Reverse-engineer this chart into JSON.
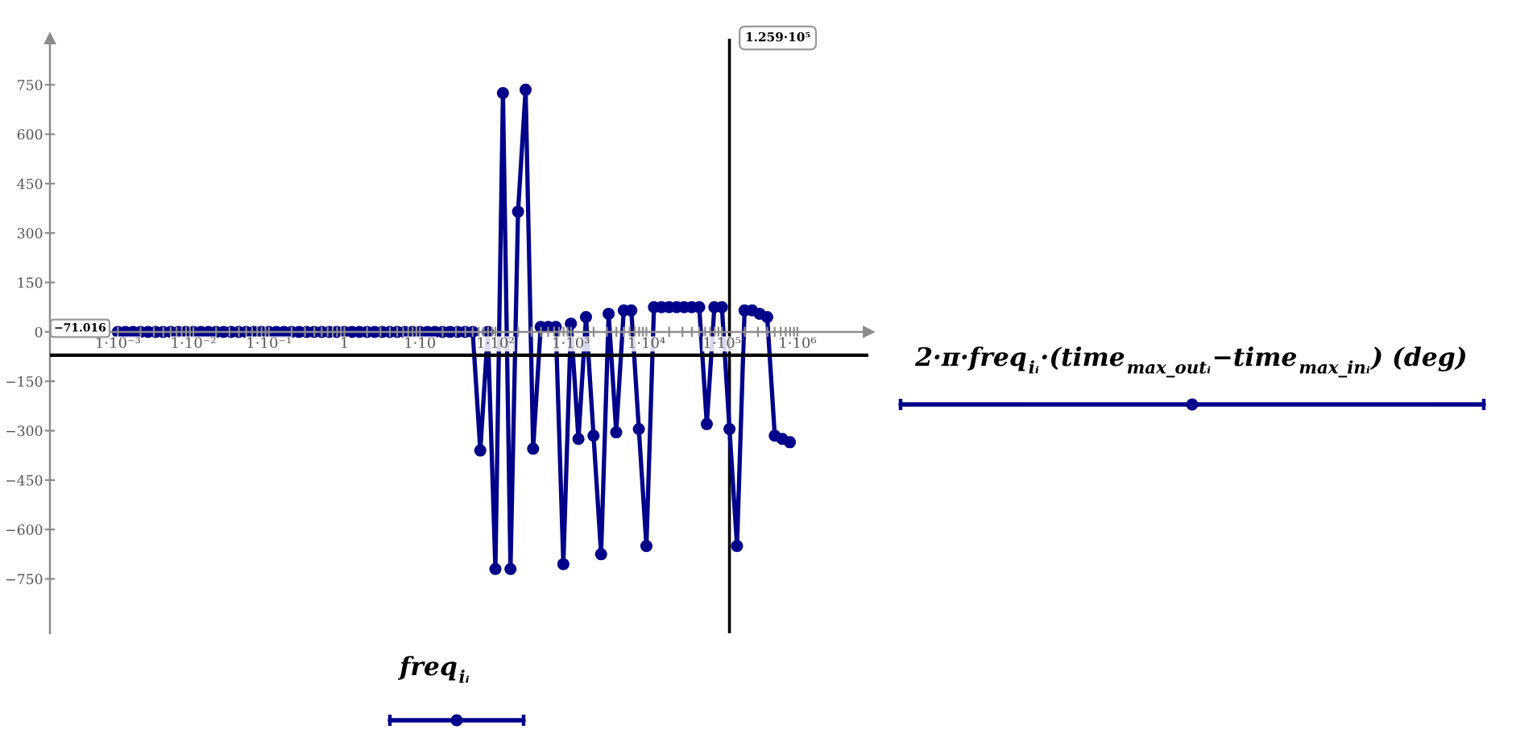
{
  "chart_data": {
    "type": "line",
    "xlabel": "freq$_{iᵢ}$",
    "ylabel": "2·π·freq$_{iᵢ}$·(time$_{max_outᵢ}$−time$_{max_inᵢ}$) (deg)",
    "log": "x",
    "marker": "circle",
    "line_style": "solid",
    "x": [
      0.001,
      0.001259,
      0.001585,
      0.001995,
      0.002512,
      0.003162,
      0.003981,
      0.005012,
      0.00631,
      0.007943,
      0.01,
      0.01259,
      0.01585,
      0.01995,
      0.02512,
      0.03162,
      0.03981,
      0.05012,
      0.0631,
      0.07943,
      0.1,
      0.1259,
      0.1585,
      0.1995,
      0.2512,
      0.3162,
      0.3981,
      0.5012,
      0.631,
      0.7943,
      1,
      1.259,
      1.585,
      1.995,
      2.512,
      3.162,
      3.981,
      5.012,
      6.31,
      7.943,
      10,
      12.59,
      15.85,
      19.95,
      25.12,
      31.62,
      39.81,
      50.12,
      63.1,
      79.43,
      100,
      125.9,
      158.5,
      199.5,
      251.2,
      316.2,
      398.1,
      501.2,
      631,
      794.3,
      1000,
      1259,
      1585,
      1995,
      2512,
      3162,
      3981,
      5012,
      6310,
      7943,
      10000,
      12590,
      15850,
      19950,
      25120,
      31620,
      39810,
      50120,
      63100,
      79430,
      100000,
      125900,
      158500,
      199500,
      251200,
      316200,
      398100,
      501200,
      631000,
      794300
    ],
    "series": [
      {
        "color": "#00008b",
        "values": [
          0,
          0,
          0,
          0,
          0,
          0,
          0,
          0,
          0,
          0,
          0,
          0,
          0,
          0,
          0,
          0,
          0,
          0,
          0,
          0,
          0,
          0,
          0,
          0,
          0,
          0,
          0,
          0,
          0,
          0,
          0,
          0,
          0,
          0,
          0,
          0,
          0,
          0,
          0,
          0,
          0,
          0,
          0,
          0,
          0,
          0,
          0,
          0,
          -360,
          0,
          -720,
          725,
          -720,
          365,
          735,
          -355,
          15,
          15,
          15,
          -705,
          25,
          -325,
          45,
          -315,
          -675,
          55,
          -305,
          65,
          65,
          -295,
          -650,
          75,
          75,
          75,
          75,
          75,
          75,
          75,
          -280,
          75,
          75,
          -295,
          -650,
          65,
          65,
          55,
          45,
          -315,
          -325,
          -335
        ]
      }
    ],
    "xlim": [
      0.000126,
      8700000
    ],
    "ylim": [
      -915,
      890
    ],
    "xticks": [
      {
        "value": 0.001,
        "label": "1·10⁻³"
      },
      {
        "value": 0.002,
        "label": null
      },
      {
        "value": 0.003,
        "label": null
      },
      {
        "value": 0.004,
        "label": null
      },
      {
        "value": 0.005,
        "label": null
      },
      {
        "value": 0.006,
        "label": null
      },
      {
        "value": 0.007,
        "label": null
      },
      {
        "value": 0.008,
        "label": null
      },
      {
        "value": 0.009,
        "label": null
      },
      {
        "value": 0.01,
        "label": "1·10⁻²"
      },
      {
        "value": 0.02,
        "label": null
      },
      {
        "value": 0.03,
        "label": null
      },
      {
        "value": 0.04,
        "label": null
      },
      {
        "value": 0.05,
        "label": null
      },
      {
        "value": 0.06,
        "label": null
      },
      {
        "value": 0.07,
        "label": null
      },
      {
        "value": 0.08,
        "label": null
      },
      {
        "value": 0.09,
        "label": null
      },
      {
        "value": 0.1,
        "label": "1·10⁻¹"
      },
      {
        "value": 0.2,
        "label": null
      },
      {
        "value": 0.3,
        "label": null
      },
      {
        "value": 0.4,
        "label": null
      },
      {
        "value": 0.5,
        "label": null
      },
      {
        "value": 0.6,
        "label": null
      },
      {
        "value": 0.7,
        "label": null
      },
      {
        "value": 0.8,
        "label": null
      },
      {
        "value": 0.9,
        "label": null
      },
      1,
      {
        "value": 2,
        "label": null
      },
      {
        "value": 3,
        "label": null
      },
      {
        "value": 4,
        "label": null
      },
      {
        "value": 5,
        "label": null
      },
      {
        "value": 6,
        "label": null
      },
      {
        "value": 7,
        "label": null
      },
      {
        "value": 8,
        "label": null
      },
      {
        "value": 9,
        "label": null
      },
      {
        "value": 10,
        "label": "1·10"
      },
      {
        "value": 20,
        "label": null
      },
      {
        "value": 30,
        "label": null
      },
      {
        "value": 40,
        "label": null
      },
      {
        "value": 50,
        "label": null
      },
      {
        "value": 60,
        "label": null
      },
      {
        "value": 70,
        "label": null
      },
      {
        "value": 80,
        "label": null
      },
      {
        "value": 90,
        "label": null
      },
      {
        "value": 100,
        "label": "1·10²"
      },
      {
        "value": 200,
        "label": null
      },
      {
        "value": 300,
        "label": null
      },
      {
        "value": 400,
        "label": null
      },
      {
        "value": 500,
        "label": null
      },
      {
        "value": 600,
        "label": null
      },
      {
        "value": 700,
        "label": null
      },
      {
        "value": 800,
        "label": null
      },
      {
        "value": 900,
        "label": null
      },
      {
        "value": 1000,
        "label": "1·10³"
      },
      {
        "value": 2000,
        "label": null
      },
      {
        "value": 3000,
        "label": null
      },
      {
        "value": 4000,
        "label": null
      },
      {
        "value": 5000,
        "label": null
      },
      {
        "value": 6000,
        "label": null
      },
      {
        "value": 7000,
        "label": null
      },
      {
        "value": 8000,
        "label": null
      },
      {
        "value": 9000,
        "label": null
      },
      {
        "value": 10000,
        "label": "1·10⁴"
      },
      {
        "value": 20000,
        "label": null
      },
      {
        "value": 30000,
        "label": null
      },
      {
        "value": 40000,
        "label": null
      },
      {
        "value": 50000,
        "label": null
      },
      {
        "value": 60000,
        "label": null
      },
      {
        "value": 70000,
        "label": null
      },
      {
        "value": 80000,
        "label": null
      },
      {
        "value": 90000,
        "label": null
      },
      {
        "value": 100000,
        "label": "1·10⁵"
      },
      {
        "value": 200000,
        "label": null
      },
      {
        "value": 300000,
        "label": null
      },
      {
        "value": 400000,
        "label": null
      },
      {
        "value": 500000,
        "label": null
      },
      {
        "value": 600000,
        "label": null
      },
      {
        "value": 700000,
        "label": null
      },
      {
        "value": 800000,
        "label": null
      },
      {
        "value": 900000,
        "label": null
      },
      {
        "value": 1000000,
        "label": "1·10⁶"
      }
    ],
    "yticks": [
      {
        "value": -750,
        "label": "−750"
      },
      {
        "value": -600,
        "label": "−600"
      },
      {
        "value": -450,
        "label": "−450"
      },
      {
        "value": -300,
        "label": "−300"
      },
      {
        "value": -150,
        "label": "−150"
      },
      0,
      150,
      300,
      450,
      600,
      750
    ],
    "ref_lines": [
      {
        "axis": "x",
        "value": 125900,
        "label": "1.259·10⁵",
        "color": "#000000"
      },
      {
        "axis": "y",
        "value": -71.016,
        "label": "−71.016",
        "color": "#000000"
      }
    ]
  }
}
